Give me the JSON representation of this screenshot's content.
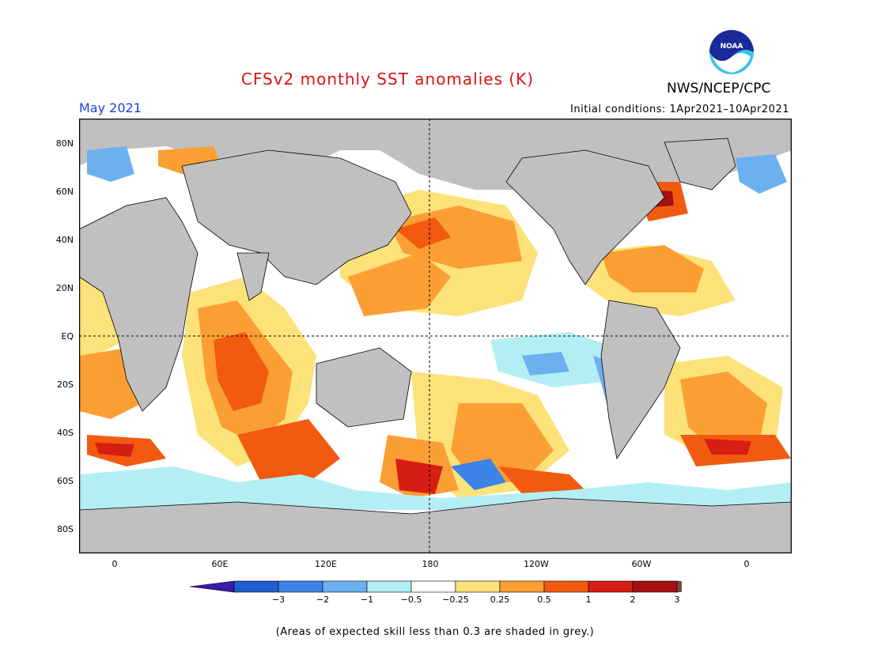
{
  "title": "CFSv2 monthly SST anomalies (K)",
  "month": "May 2021",
  "initial_conditions": "Initial conditions: 1Apr2021–10Apr2021",
  "agency": "NWS/NCEP/CPC",
  "logo_text": "NOAA",
  "note": "(Areas of expected skill less than 0.3 are shaded in grey.)",
  "lat_labels": [
    "80N",
    "60N",
    "40N",
    "20N",
    "EQ",
    "20S",
    "40S",
    "60S",
    "80S"
  ],
  "lon_labels": [
    "0",
    "60E",
    "120E",
    "180",
    "120W",
    "60W",
    "0"
  ],
  "colorbar": {
    "labels": [
      "−3",
      "−2",
      "−1",
      "−0.5",
      "−0.25",
      "0.25",
      "0.5",
      "1",
      "2",
      "3"
    ],
    "colors": [
      "#3b1aa8",
      "#1f5fd0",
      "#3d82e6",
      "#6cb0f0",
      "#b4eef5",
      "#ffffff",
      "#fde27a",
      "#fb9f34",
      "#f25a10",
      "#d61e14",
      "#a51010",
      "#7a4a3a"
    ]
  },
  "colors": {
    "land": "#c0c0c0",
    "coast": "#000000",
    "warm_0_25": "#fde27a",
    "warm_0_5": "#fb9f34",
    "warm_1": "#f25a10",
    "warm_2": "#d61e14",
    "warm_3": "#a51010",
    "cool_0_25": "#b4eef5",
    "cool_0_5": "#6cb0f0",
    "cool_1": "#3d82e6",
    "grey_skill": "#c0c0c0"
  }
}
